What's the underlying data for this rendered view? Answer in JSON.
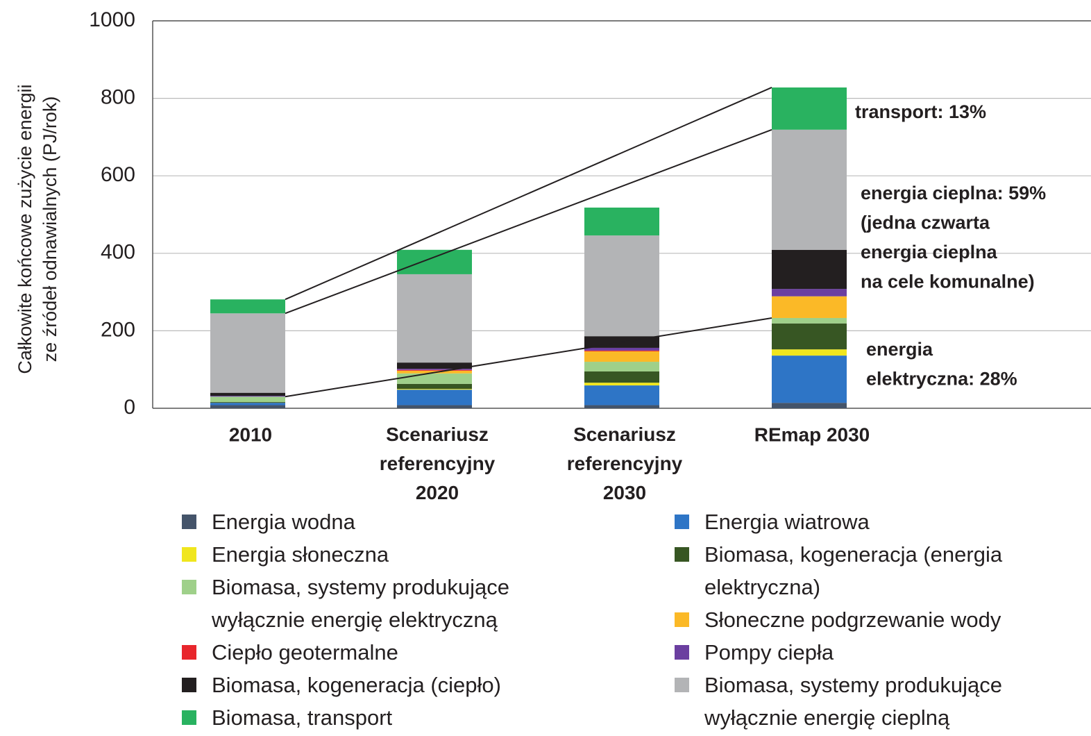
{
  "chart_data": {
    "type": "stacked_bar",
    "y_label": [
      "Całkowite końcowe zużycie energii",
      "ze źródeł odnawialnych (PJ/rok)"
    ],
    "categories": [
      "2010",
      "Scenariusz referencyjny 2020",
      "Scenariusz referencyjny 2030",
      "REmap 2030"
    ],
    "ylim": [
      0,
      1000
    ],
    "yticks": [
      0,
      200,
      400,
      600,
      800,
      1000
    ],
    "grid": true,
    "series": [
      {
        "name": "Energia wodna",
        "color": "#44546a",
        "values": [
          8,
          8,
          8,
          14
        ]
      },
      {
        "name": "Energia wiatrowa",
        "color": "#2e75c6",
        "values": [
          6,
          40,
          51,
          122
        ]
      },
      {
        "name": "Energia słoneczna",
        "color": "#f0e61e",
        "values": [
          0,
          2,
          7,
          16
        ]
      },
      {
        "name": "Biomasa, kogeneracja (energia elektryczna)",
        "color": "#375623",
        "values": [
          2,
          13,
          29,
          67
        ]
      },
      {
        "name": "Biomasa, systemy produkujące wyłącznie energię elektryczną",
        "color": "#9fd08a",
        "values": [
          14,
          27,
          25,
          14
        ]
      },
      {
        "name": "Słoneczne podgrzewanie wody",
        "color": "#fbb927",
        "values": [
          0,
          7,
          27,
          56
        ]
      },
      {
        "name": "Ciepło geotermalne",
        "color": "#e8262c",
        "values": [
          0,
          2,
          2,
          0
        ]
      },
      {
        "name": "Pompy ciepła",
        "color": "#6b3fa0",
        "values": [
          2,
          3,
          7,
          19
        ]
      },
      {
        "name": "Biomasa, kogeneracja (ciepło)",
        "color": "#231f20",
        "values": [
          8,
          16,
          30,
          101
        ]
      },
      {
        "name": "Biomasa, systemy produkujące wyłącznie energię cieplną",
        "color": "#b3b4b6",
        "values": [
          205,
          228,
          260,
          310
        ]
      },
      {
        "name": "Biomasa, transport",
        "color": "#29b260",
        "values": [
          36,
          63,
          72,
          109
        ]
      }
    ],
    "annotations": [
      {
        "lines": [
          "transport: 13%"
        ]
      },
      {
        "lines": [
          "energia cieplna: 59%",
          "(jedna czwarta",
          "energia cieplna",
          "na cele komunalne)"
        ]
      },
      {
        "lines": [
          "energia",
          "elektryczna: 28%"
        ]
      }
    ]
  }
}
